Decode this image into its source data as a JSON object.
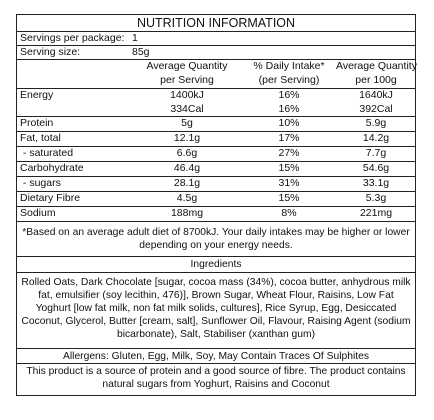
{
  "title": "NUTRITION INFORMATION",
  "servings": {
    "label": "Servings per package:",
    "value": "1"
  },
  "serving_size": {
    "label": "Serving size:",
    "value": "85g"
  },
  "headers": {
    "avg_quantity_serving": [
      "Average Quantity",
      "per Serving"
    ],
    "daily_intake": [
      "% Daily Intake*",
      "(per Serving)"
    ],
    "avg_quantity_100g": [
      "Average Quantity",
      "per 100g"
    ]
  },
  "rows": [
    {
      "name": "Energy",
      "serving": "1400kJ",
      "di": "16%",
      "per100": "1640kJ"
    },
    {
      "name": "",
      "serving": "334Cal",
      "di": "16%",
      "per100": "392Cal"
    },
    {
      "name": "Protein",
      "serving": "5g",
      "di": "10%",
      "per100": "5.9g"
    },
    {
      "name": "Fat, total",
      "serving": "12.1g",
      "di": "17%",
      "per100": "14.2g"
    },
    {
      "name": " - saturated",
      "serving": "6.6g",
      "di": "27%",
      "per100": "7.7g"
    },
    {
      "name": "Carbohydrate",
      "serving": "46.4g",
      "di": "15%",
      "per100": "54.6g"
    },
    {
      "name": " - sugars",
      "serving": "28.1g",
      "di": "31%",
      "per100": "33.1g"
    },
    {
      "name": "Dietary Fibre",
      "serving": "4.5g",
      "di": "15%",
      "per100": "5.3g"
    },
    {
      "name": "Sodium",
      "serving": "188mg",
      "di": "8%",
      "per100": "221mg"
    }
  ],
  "footnote": "*Based on an average adult diet of 8700kJ. Your daily intakes may be higher or lower depending on your energy needs.",
  "ingredients_heading": "Ingredients",
  "ingredients": "Rolled Oats, Dark Chocolate [sugar, cocoa mass (34%), cocoa butter, anhydrous milk fat, emulsifier (soy lecithin, 476)], Brown Sugar, Wheat Flour, Raisins, Low Fat Yoghurt [low fat milk, non fat milk solids, cultures], Rice Syrup, Egg, Desiccated Coconut, Glycerol, Butter [cream, salt], Sunflower Oil, Flavour, Raising Agent (sodium bicarbonate), Salt, Stabiliser (xanthan gum)",
  "allergens": "Allergens: Gluten, Egg, Milk, Soy, May Contain Traces Of Sulphites",
  "claim": "This product is a source of protein and a good source of fibre. The product contains natural sugars from Yoghurt, Raisins and Coconut"
}
